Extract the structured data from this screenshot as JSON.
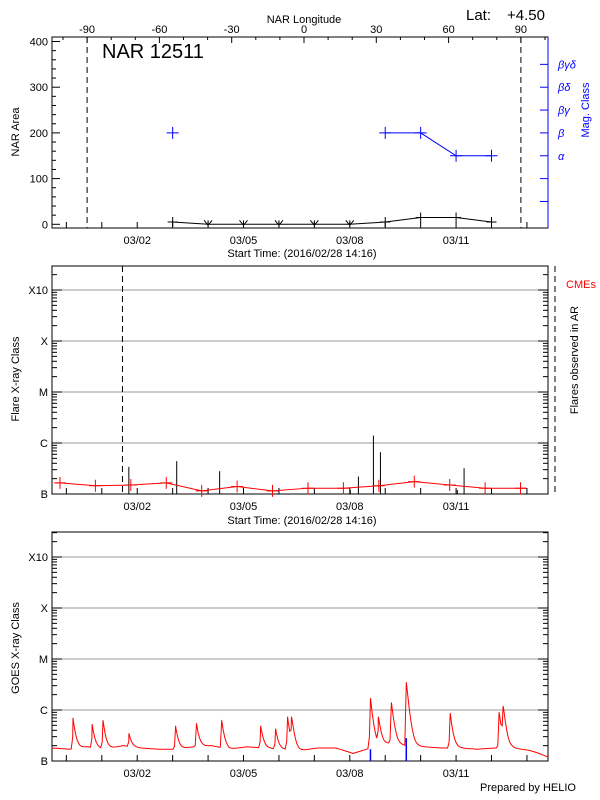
{
  "header": {
    "lat_label": "Lat:",
    "lat_value": "+4.50",
    "footer": "Prepared by HELIO"
  },
  "colors": {
    "axis": "#000000",
    "mag_class": "#0000ff",
    "cme": "#ff0000",
    "goes": "#ff0000",
    "grid": "#999999",
    "goes_marker": "#0000ff"
  },
  "chart_data": [
    {
      "type": "line",
      "title": "NAR 12511",
      "xlabel": "Start Time: (2016/02/28 14:16)",
      "top_xlabel": "NAR Longitude",
      "ylabel": "NAR Area",
      "y2label": "Mag. Class",
      "xlim": [
        "2016-02-28T14:16",
        "2016-03-13T14:16"
      ],
      "ylim": [
        0,
        400
      ],
      "yticks": [
        0,
        100,
        200,
        300,
        400
      ],
      "xtick_labels": [
        {
          "date": "2016-03-02T00:00",
          "label": "03/02"
        },
        {
          "date": "2016-03-05T00:00",
          "label": "03/05"
        },
        {
          "date": "2016-03-08T00:00",
          "label": "03/08"
        },
        {
          "date": "2016-03-11T00:00",
          "label": "03/11"
        }
      ],
      "longitude_ticks": [
        -90,
        -60,
        -30,
        0,
        30,
        60,
        90
      ],
      "limb_lines_longitude": [
        -90,
        90
      ],
      "area_series": [
        {
          "date": "2016-03-03T00:00",
          "area": 5
        },
        {
          "date": "2016-03-04T00:00",
          "area": 0
        },
        {
          "date": "2016-03-05T00:00",
          "area": 0
        },
        {
          "date": "2016-03-06T00:00",
          "area": 0
        },
        {
          "date": "2016-03-07T00:00",
          "area": 0
        },
        {
          "date": "2016-03-08T00:00",
          "area": 0
        },
        {
          "date": "2016-03-09T00:00",
          "area": 5
        },
        {
          "date": "2016-03-10T00:00",
          "area": 15
        },
        {
          "date": "2016-03-11T00:00",
          "area": 15
        },
        {
          "date": "2016-03-12T00:00",
          "area": 5
        }
      ],
      "mag_class_levels": [
        "α",
        "β",
        "βγ",
        "βδ",
        "βγδ"
      ],
      "mag_class_series": [
        {
          "date": "2016-03-03T00:00",
          "class": "β",
          "connected": false
        },
        {
          "date": "2016-03-09T00:00",
          "class": "β",
          "connected": true
        },
        {
          "date": "2016-03-10T00:00",
          "class": "β",
          "connected": true
        },
        {
          "date": "2016-03-11T00:00",
          "class": "α",
          "connected": true
        },
        {
          "date": "2016-03-12T00:00",
          "class": "α",
          "connected": true
        }
      ]
    },
    {
      "type": "bar",
      "xlabel": "Start Time: (2016/02/28 14:16)",
      "ylabel": "Flare X-ray Class",
      "y2label": "Flares observed in AR",
      "legend": "CMEs",
      "yscale": "log",
      "ylim_flux": [
        1e-07,
        0.003
      ],
      "class_ticks": [
        {
          "label": "B",
          "flux": 1e-07
        },
        {
          "label": "C",
          "flux": 1e-06
        },
        {
          "label": "M",
          "flux": 1e-05
        },
        {
          "label": "X",
          "flux": 0.0001
        },
        {
          "label": "X10",
          "flux": 0.001
        }
      ],
      "grid": true,
      "flares": [
        {
          "date": "2016-03-01T18:20",
          "class": "B3.4"
        },
        {
          "date": "2016-03-03T02:45",
          "class": "B4.4"
        },
        {
          "date": "2016-03-04T07:50",
          "class": "B2.8"
        },
        {
          "date": "2016-03-08T00:20",
          "class": "B1.2"
        },
        {
          "date": "2016-03-08T05:50",
          "class": "B2.2"
        },
        {
          "date": "2016-03-08T16:00",
          "class": "C1.4"
        },
        {
          "date": "2016-03-08T20:45",
          "class": "B6.6"
        },
        {
          "date": "2016-03-11T00:50",
          "class": "B1.2"
        },
        {
          "date": "2016-03-11T05:25",
          "class": "B3.2"
        }
      ],
      "cme_series": [
        {
          "date": "2016-02-28T19:40",
          "flux": 1.65e-07
        },
        {
          "date": "2016-02-29T19:40",
          "flux": 1.45e-07
        },
        {
          "date": "2016-03-01T19:40",
          "flux": 1.5e-07
        },
        {
          "date": "2016-03-02T19:40",
          "flux": 1.65e-07
        },
        {
          "date": "2016-03-03T19:40",
          "flux": 1.15e-07
        },
        {
          "date": "2016-03-04T19:40",
          "flux": 1.4e-07
        },
        {
          "date": "2016-03-05T19:40",
          "flux": 1.15e-07
        },
        {
          "date": "2016-03-06T19:40",
          "flux": 1.3e-07
        },
        {
          "date": "2016-03-07T19:40",
          "flux": 1.3e-07
        },
        {
          "date": "2016-03-08T19:40",
          "flux": 1.45e-07
        },
        {
          "date": "2016-03-09T19:40",
          "flux": 1.75e-07
        },
        {
          "date": "2016-03-10T19:40",
          "flux": 1.5e-07
        },
        {
          "date": "2016-03-11T19:40",
          "flux": 1.3e-07
        },
        {
          "date": "2016-03-12T19:40",
          "flux": 1.3e-07
        }
      ],
      "xtick_labels": [
        "03/02",
        "03/05",
        "03/08",
        "03/11"
      ],
      "limb_lines": [
        "2016-03-01T14:00",
        "2016-03-13T19:00"
      ]
    },
    {
      "type": "line",
      "ylabel": "GOES X-ray Class",
      "yscale": "log",
      "grid": true,
      "xtick_labels": [
        "03/02",
        "03/05",
        "03/08",
        "03/11"
      ],
      "baseline_every_12h_flux": [
        1.8e-07,
        1.7e-07,
        1.9e-07,
        1.7e-07,
        2e-07,
        1.8e-07,
        1.7e-07,
        1.7e-07,
        1.9e-07,
        2e-07,
        1.7e-07,
        1.9e-07,
        1.8e-07,
        1.7e-07,
        1.6e-07,
        1.8e-07,
        1.8e-07,
        1.4e-07,
        1.8e-07,
        2.2e-07,
        2e-07,
        1.9e-07,
        1.8e-07,
        1.8e-07,
        1.7e-07,
        1.8e-07,
        1.8e-07,
        1.6e-07,
        1.2e-07
      ],
      "peaks": [
        {
          "date": "2016-02-29T04:30",
          "flux": 7e-07
        },
        {
          "date": "2016-02-29T17:25",
          "flux": 5.3e-07
        },
        {
          "date": "2016-03-01T00:50",
          "flux": 6.3e-07
        },
        {
          "date": "2016-03-01T18:20",
          "flux": 3.5e-07
        },
        {
          "date": "2016-03-03T02:00",
          "flux": 4.9e-07
        },
        {
          "date": "2016-03-03T16:10",
          "flux": 5.3e-07
        },
        {
          "date": "2016-03-04T09:15",
          "flux": 6.2e-07
        },
        {
          "date": "2016-03-05T11:40",
          "flux": 4.9e-07
        },
        {
          "date": "2016-03-05T21:45",
          "flux": 4.3e-07
        },
        {
          "date": "2016-03-06T05:50",
          "flux": 7.4e-07
        },
        {
          "date": "2016-03-06T08:30",
          "flux": 7.4e-07
        },
        {
          "date": "2016-03-08T14:00",
          "flux": 1.7e-06
        },
        {
          "date": "2016-03-08T19:20",
          "flux": 7.4e-07
        },
        {
          "date": "2016-03-09T04:10",
          "flux": 1.4e-06
        },
        {
          "date": "2016-03-09T14:16",
          "flux": 3.5e-06
        },
        {
          "date": "2016-03-10T20:00",
          "flux": 8.7e-07
        },
        {
          "date": "2016-03-12T05:10",
          "flux": 9.1e-07
        },
        {
          "date": "2016-03-12T07:50",
          "flux": 1.2e-06
        }
      ],
      "markers": [
        {
          "date": "2016-03-08T14:00",
          "flux": 1.7e-07
        },
        {
          "date": "2016-03-09T14:16",
          "flux": 2.8e-07
        }
      ]
    }
  ]
}
